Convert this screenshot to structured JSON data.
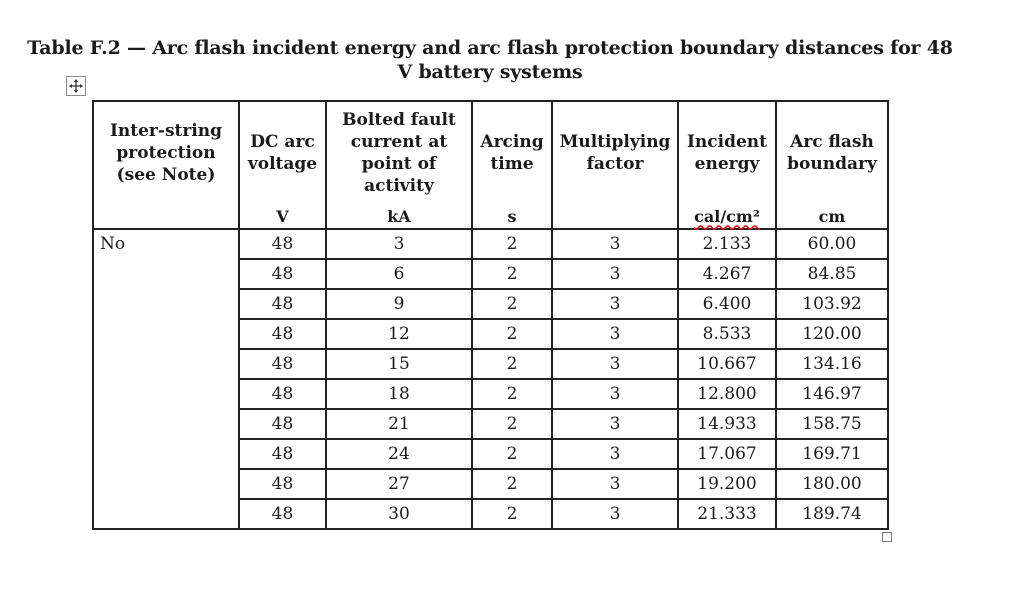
{
  "title": "Table F.2 — Arc flash incident energy and arc flash protection boundary distances for 48 V battery systems",
  "headers": [
    "Inter-string protection (see Note)",
    "DC arc voltage",
    "Bolted fault current at point of activity",
    "Arcing time",
    "Multiplying factor",
    "Incident energy",
    "Arc flash boundary"
  ],
  "units": [
    "",
    "V",
    "kA",
    "s",
    "",
    "cal/cm²",
    "cm"
  ],
  "inter_string_value": "No",
  "rows": [
    [
      "48",
      "3",
      "2",
      "3",
      "2.133",
      "60.00"
    ],
    [
      "48",
      "6",
      "2",
      "3",
      "4.267",
      "84.85"
    ],
    [
      "48",
      "9",
      "2",
      "3",
      "6.400",
      "103.92"
    ],
    [
      "48",
      "12",
      "2",
      "3",
      "8.533",
      "120.00"
    ],
    [
      "48",
      "15",
      "2",
      "3",
      "10.667",
      "134.16"
    ],
    [
      "48",
      "18",
      "2",
      "3",
      "12.800",
      "146.97"
    ],
    [
      "48",
      "21",
      "2",
      "3",
      "14.933",
      "158.75"
    ],
    [
      "48",
      "24",
      "2",
      "3",
      "17.067",
      "169.71"
    ],
    [
      "48",
      "27",
      "2",
      "3",
      "19.200",
      "180.00"
    ],
    [
      "48",
      "30",
      "2",
      "3",
      "21.333",
      "189.74"
    ]
  ]
}
